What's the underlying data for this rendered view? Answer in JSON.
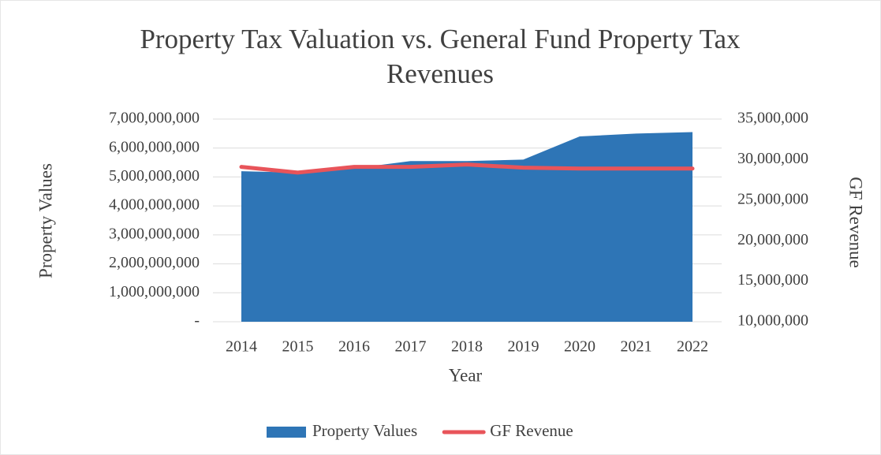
{
  "chart_data": {
    "type": "area-line",
    "title": "Property Tax Valuation vs. General Fund Property Tax Revenues",
    "x_label": "Year",
    "y_label": "Property Values",
    "y2_label": "GF Revenue",
    "categories": [
      "2014",
      "2015",
      "2016",
      "2017",
      "2018",
      "2019",
      "2020",
      "2021",
      "2022"
    ],
    "series": [
      {
        "name": "Property Values",
        "type": "area",
        "color": "#2e75b6",
        "values": [
          5200000000,
          5150000000,
          5300000000,
          5550000000,
          5550000000,
          5600000000,
          6400000000,
          6500000000,
          6550000000
        ]
      },
      {
        "name": "GF Revenue",
        "type": "line",
        "axis": "y2",
        "color": "#e8545a",
        "values": [
          29100000,
          28400000,
          29100000,
          29100000,
          29400000,
          29000000,
          28900000,
          28900000,
          28900000
        ]
      }
    ],
    "ylim": [
      0,
      7000000000
    ],
    "yticks": [
      {
        "value": 0,
        "label": "-"
      },
      {
        "value": 1000000000,
        "label": "1,000,000,000"
      },
      {
        "value": 2000000000,
        "label": "2,000,000,000"
      },
      {
        "value": 3000000000,
        "label": "3,000,000,000"
      },
      {
        "value": 4000000000,
        "label": "4,000,000,000"
      },
      {
        "value": 5000000000,
        "label": "5,000,000,000"
      },
      {
        "value": 6000000000,
        "label": "6,000,000,000"
      },
      {
        "value": 7000000000,
        "label": "7,000,000,000"
      }
    ],
    "y2lim": [
      10000000,
      35000000
    ],
    "y2ticks": [
      {
        "value": 10000000,
        "label": "10,000,000"
      },
      {
        "value": 15000000,
        "label": "15,000,000"
      },
      {
        "value": 20000000,
        "label": "20,000,000"
      },
      {
        "value": 25000000,
        "label": "25,000,000"
      },
      {
        "value": 30000000,
        "label": "30,000,000"
      },
      {
        "value": 35000000,
        "label": "35,000,000"
      }
    ],
    "grid": true,
    "legend": "bottom"
  }
}
